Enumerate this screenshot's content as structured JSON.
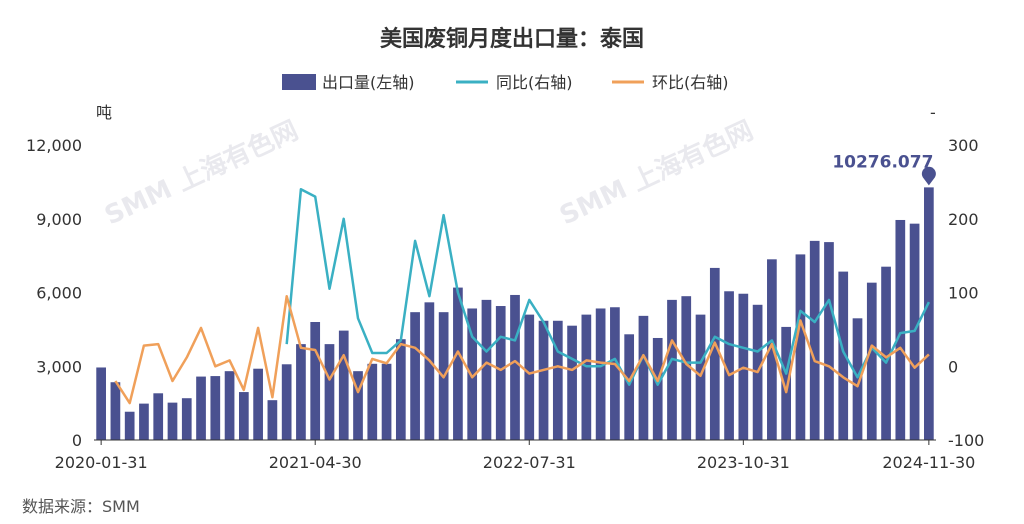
{
  "colors": {
    "bar": "#4a5190",
    "yoy": "#3ab0c3",
    "mom": "#f0a05a",
    "axis": "#333333"
  },
  "chart_data": {
    "type": "bar",
    "title": "美国废铜月度出口量：泰国",
    "ylabel_left": "吨",
    "ylabel_right": "-",
    "ylim_left": [
      0,
      12000
    ],
    "ylim_right": [
      -100,
      300
    ],
    "yticks_left": [
      "0",
      "3,000",
      "6,000",
      "9,000",
      "12,000"
    ],
    "yticks_right": [
      "-100",
      "0",
      "100",
      "200",
      "300"
    ],
    "x_tick_labels": [
      "2020-01-31",
      "2021-04-30",
      "2022-07-31",
      "2023-10-31",
      "2024-11-30"
    ],
    "x_tick_positions": [
      0,
      15,
      30,
      45,
      58
    ],
    "legend": [
      "出口量(左轴)",
      "同比(右轴)",
      "环比(右轴)"
    ],
    "source": "数据来源：SMM",
    "watermark": "SMM 上海有色网",
    "annotation": {
      "text": "10276.077",
      "index": 58,
      "value": 10276.077
    },
    "series": [
      {
        "name": "出口量(左轴)",
        "axis": "left",
        "type": "bar",
        "values": [
          2950,
          2350,
          1150,
          1480,
          1900,
          1520,
          1700,
          2580,
          2600,
          2800,
          1950,
          2900,
          1620,
          3080,
          3900,
          4800,
          3900,
          4450,
          2800,
          3100,
          3100,
          4100,
          5200,
          5600,
          5200,
          6200,
          5350,
          5700,
          5450,
          5900,
          5100,
          4850,
          4850,
          4650,
          5100,
          5350,
          5400,
          4300,
          5050,
          4150,
          5700,
          5850,
          5100,
          7000,
          6050,
          5950,
          5500,
          7350,
          4600,
          7550,
          8100,
          8050,
          6850,
          4950,
          6400,
          7050,
          8950,
          8800,
          10276.077
        ]
      },
      {
        "name": "同比(右轴)",
        "axis": "right",
        "type": "line",
        "values": [
          null,
          null,
          null,
          null,
          null,
          null,
          null,
          null,
          null,
          null,
          null,
          null,
          null,
          30,
          240,
          230,
          105,
          200,
          65,
          18,
          18,
          35,
          170,
          95,
          205,
          100,
          40,
          20,
          40,
          35,
          90,
          60,
          20,
          10,
          0,
          0,
          10,
          -25,
          15,
          -25,
          10,
          5,
          5,
          40,
          30,
          25,
          20,
          35,
          -10,
          75,
          60,
          90,
          20,
          -15,
          25,
          5,
          45,
          48,
          87
        ]
      },
      {
        "name": "环比(右轴)",
        "axis": "right",
        "type": "line",
        "values": [
          null,
          -20,
          -50,
          28,
          30,
          -20,
          12,
          52,
          0,
          8,
          -32,
          52,
          -42,
          95,
          25,
          22,
          -18,
          15,
          -35,
          10,
          4,
          30,
          25,
          8,
          -15,
          20,
          -15,
          5,
          -5,
          7,
          -10,
          -5,
          0,
          -5,
          8,
          5,
          3,
          -20,
          15,
          -20,
          35,
          3,
          -13,
          32,
          -12,
          -2,
          -8,
          30,
          -35,
          62,
          7,
          0,
          -15,
          -27,
          28,
          12,
          25,
          -2,
          16
        ]
      }
    ]
  }
}
